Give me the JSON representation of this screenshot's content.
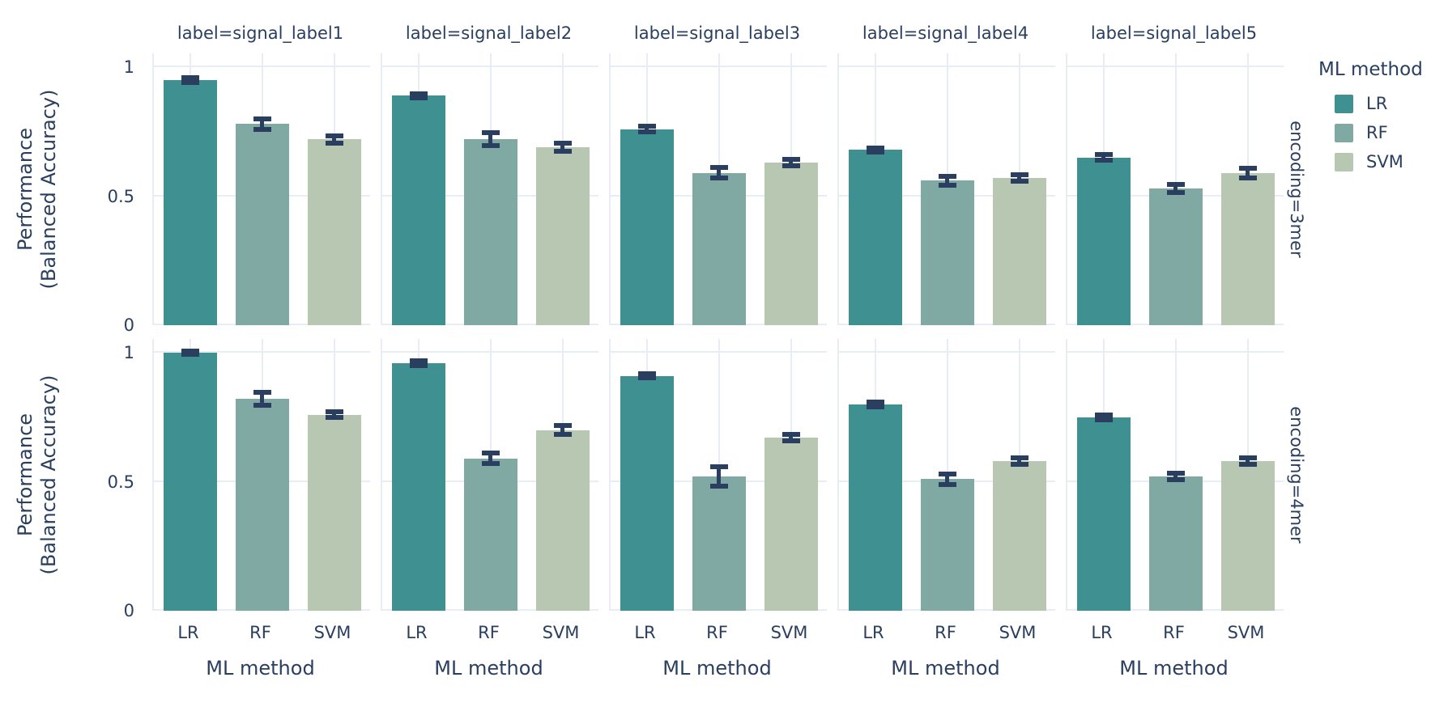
{
  "legend": {
    "title": "ML method",
    "entries": [
      {
        "label": "LR",
        "color": "#3f9091"
      },
      {
        "label": "RF",
        "color": "#80a9a3"
      },
      {
        "label": "SVM",
        "color": "#b8c7b2"
      }
    ]
  },
  "chart_data": {
    "type": "bar",
    "title": "",
    "xlabel": "ML method",
    "ylabel": "Performance (Balanced Accuracy)",
    "ylabel_lines": [
      "Performance",
      "(Balanced Accuracy)"
    ],
    "categories": [
      "LR",
      "RF",
      "SVM"
    ],
    "bar_colors": [
      "#3f9091",
      "#80a9a3",
      "#b8c7b2"
    ],
    "error_bar_color": "#2a3f5f",
    "text_color": "#2a3f5f",
    "grid_color": "#e7ecf5",
    "grid": true,
    "legend_title": "ML method",
    "legend_position": "right",
    "yticks": [
      0,
      0.5,
      1
    ],
    "ytick_labels": [
      "0",
      "0.5",
      "1"
    ],
    "ylim": [
      0,
      1.05
    ],
    "facet_col_labels": [
      "label=signal_label1",
      "label=signal_label2",
      "label=signal_label3",
      "label=signal_label4",
      "label=signal_label5"
    ],
    "facet_row_labels": [
      "encoding=3mer",
      "encoding=4mer"
    ],
    "rows": [
      {
        "row_label": "encoding=3mer",
        "facets": [
          {
            "col_label": "label=signal_label1",
            "means": [
              0.95,
              0.78,
              0.72
            ],
            "errors": [
              0.01,
              0.02,
              0.015
            ]
          },
          {
            "col_label": "label=signal_label2",
            "means": [
              0.89,
              0.72,
              0.69
            ],
            "errors": [
              0.008,
              0.025,
              0.015
            ]
          },
          {
            "col_label": "label=signal_label3",
            "means": [
              0.76,
              0.59,
              0.63
            ],
            "errors": [
              0.012,
              0.02,
              0.012
            ]
          },
          {
            "col_label": "label=signal_label4",
            "means": [
              0.68,
              0.56,
              0.57
            ],
            "errors": [
              0.008,
              0.018,
              0.012
            ]
          },
          {
            "col_label": "label=signal_label5",
            "means": [
              0.65,
              0.53,
              0.59
            ],
            "errors": [
              0.01,
              0.015,
              0.018
            ]
          }
        ]
      },
      {
        "row_label": "encoding=4mer",
        "facets": [
          {
            "col_label": "label=signal_label1",
            "means": [
              1.0,
              0.82,
              0.76
            ],
            "errors": [
              0.005,
              0.025,
              0.012
            ]
          },
          {
            "col_label": "label=signal_label2",
            "means": [
              0.96,
              0.59,
              0.7
            ],
            "errors": [
              0.01,
              0.02,
              0.018
            ]
          },
          {
            "col_label": "label=signal_label3",
            "means": [
              0.91,
              0.52,
              0.67
            ],
            "errors": [
              0.007,
              0.038,
              0.012
            ]
          },
          {
            "col_label": "label=signal_label4",
            "means": [
              0.8,
              0.51,
              0.58
            ],
            "errors": [
              0.009,
              0.02,
              0.013
            ]
          },
          {
            "col_label": "label=signal_label5",
            "means": [
              0.75,
              0.52,
              0.58
            ],
            "errors": [
              0.01,
              0.012,
              0.012
            ]
          }
        ]
      }
    ]
  }
}
